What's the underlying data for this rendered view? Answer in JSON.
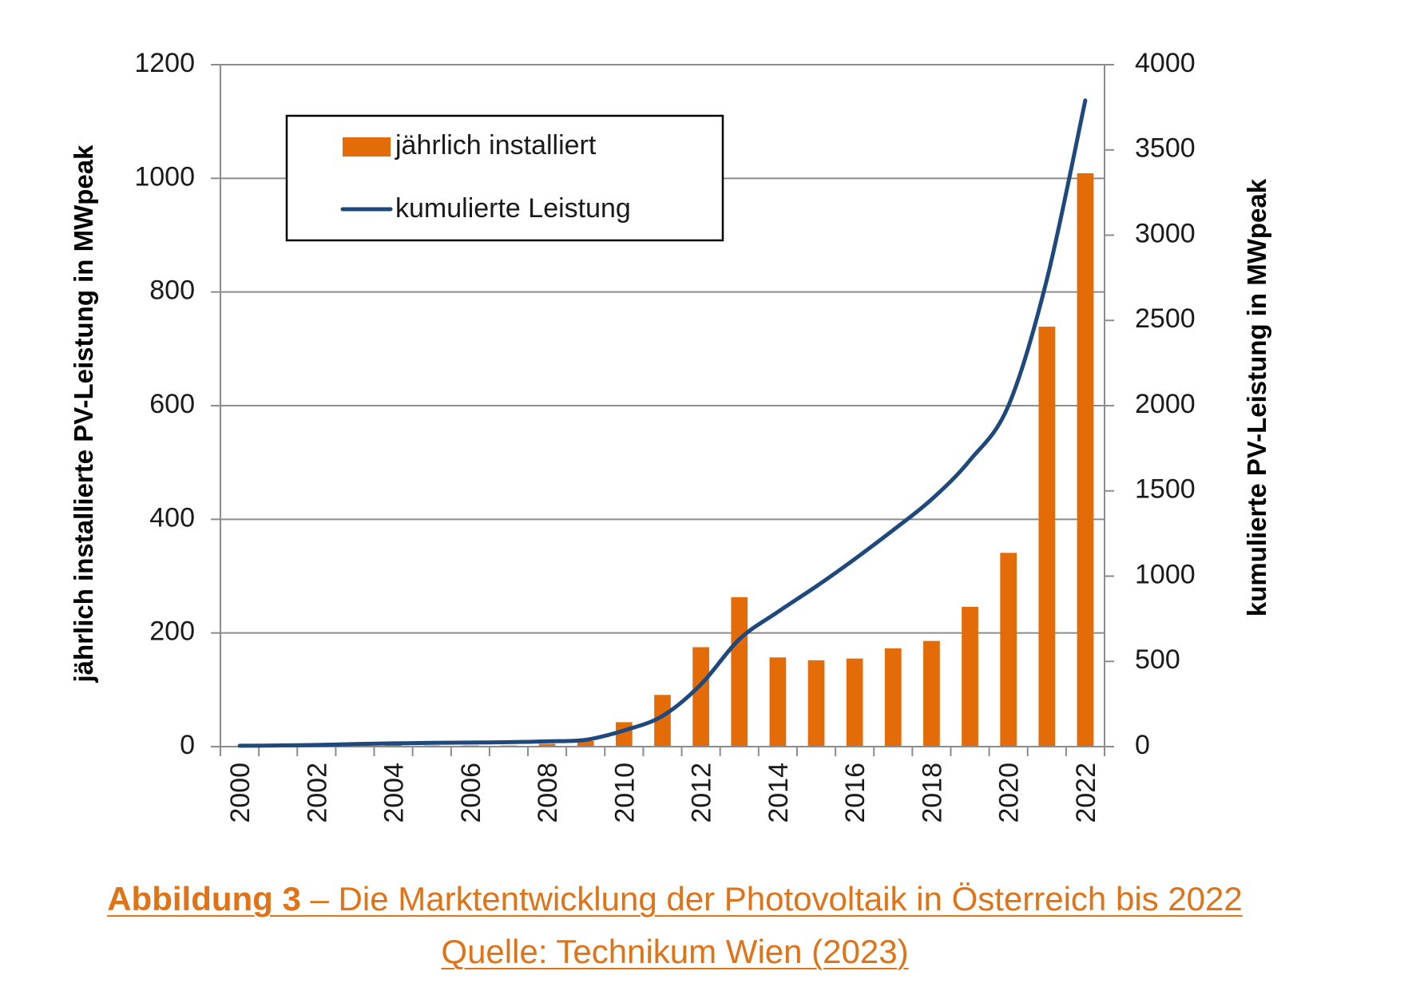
{
  "chart_data": {
    "type": "bar",
    "categories": [
      "2000",
      "2001",
      "2002",
      "2003",
      "2004",
      "2005",
      "2006",
      "2007",
      "2008",
      "2009",
      "2010",
      "2011",
      "2012",
      "2013",
      "2014",
      "2015",
      "2016",
      "2017",
      "2018",
      "2019",
      "2020",
      "2021",
      "2022"
    ],
    "x_tick_labels": [
      "2000",
      "2002",
      "2004",
      "2006",
      "2008",
      "2010",
      "2012",
      "2014",
      "2016",
      "2018",
      "2020",
      "2022"
    ],
    "series": [
      {
        "name": "jährlich installiert",
        "type": "bar",
        "axis": "left",
        "color": "#e36c09",
        "values": [
          1,
          2,
          3,
          5,
          4,
          2,
          2,
          2,
          5,
          10,
          43,
          91,
          175,
          263,
          157,
          152,
          155,
          173,
          186,
          246,
          341,
          739,
          1009
        ]
      },
      {
        "name": "kumulierte Leistung",
        "type": "line",
        "axis": "right",
        "color": "#1f497d",
        "values": [
          5,
          7,
          10,
          15,
          19,
          22,
          24,
          26,
          31,
          40,
          95,
          180,
          365,
          630,
          790,
          940,
          1100,
          1270,
          1450,
          1680,
          2000,
          2740,
          3790
        ]
      }
    ],
    "ylabel_left": "jährlich installierte PV-Leistung in MWpeak",
    "ylabel_right": "kumulierte PV-Leistung in MWpeak",
    "ylim_left": [
      0,
      1200
    ],
    "ylim_right": [
      0,
      4000
    ],
    "yticks_left": [
      "0",
      "200",
      "400",
      "600",
      "800",
      "1000",
      "1200"
    ],
    "yticks_right": [
      "0",
      "500",
      "1000",
      "1500",
      "2000",
      "2500",
      "3000",
      "3500",
      "4000"
    ],
    "grid": true,
    "legend": "top-left"
  },
  "caption": {
    "line1_bold": "Abbildung 3",
    "line1_rest": " – Die Marktentwicklung der Photovoltaik in Österreich bis 2022",
    "line2": "Quelle: Technikum Wien (2023)"
  }
}
